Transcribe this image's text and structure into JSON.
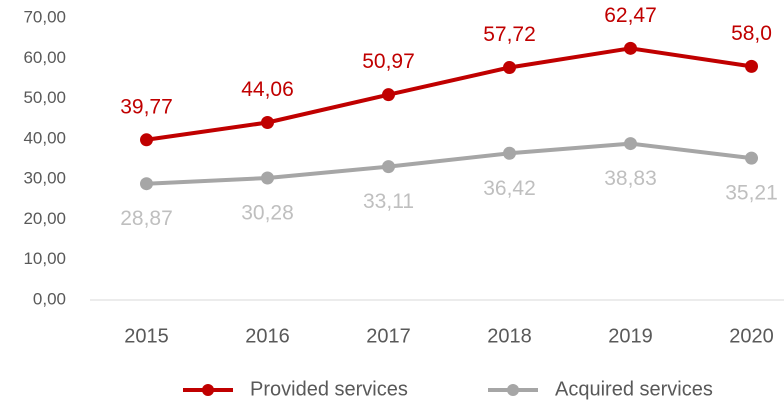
{
  "chart_data": {
    "type": "line",
    "categories": [
      "2015",
      "2016",
      "2017",
      "2018",
      "2019",
      "2020"
    ],
    "series": [
      {
        "name": "Provided services",
        "color": "#c00000",
        "label_color": "#c00000",
        "values": [
          39.77,
          44.06,
          50.97,
          57.72,
          62.47,
          58.0
        ],
        "value_labels": [
          "39,77",
          "44,06",
          "50,97",
          "57,72",
          "62,47",
          "58,0"
        ]
      },
      {
        "name": "Acquired services",
        "color": "#a6a6a6",
        "label_color": "#bfbfbf",
        "values": [
          28.87,
          30.28,
          33.11,
          36.42,
          38.83,
          35.21
        ],
        "value_labels": [
          "28,87",
          "30,28",
          "33,11",
          "36,42",
          "38,83",
          "35,21"
        ]
      }
    ],
    "ylim": [
      0,
      70
    ],
    "yticks": [
      {
        "value": 0,
        "label": "0,00"
      },
      {
        "value": 10,
        "label": "10,00"
      },
      {
        "value": 20,
        "label": "20,00"
      },
      {
        "value": 30,
        "label": "30,00"
      },
      {
        "value": 40,
        "label": "40,00"
      },
      {
        "value": 50,
        "label": "50,00"
      },
      {
        "value": 60,
        "label": "60,00"
      },
      {
        "value": 70,
        "label": "70,00"
      }
    ],
    "grid": false,
    "legend": "bottom"
  }
}
